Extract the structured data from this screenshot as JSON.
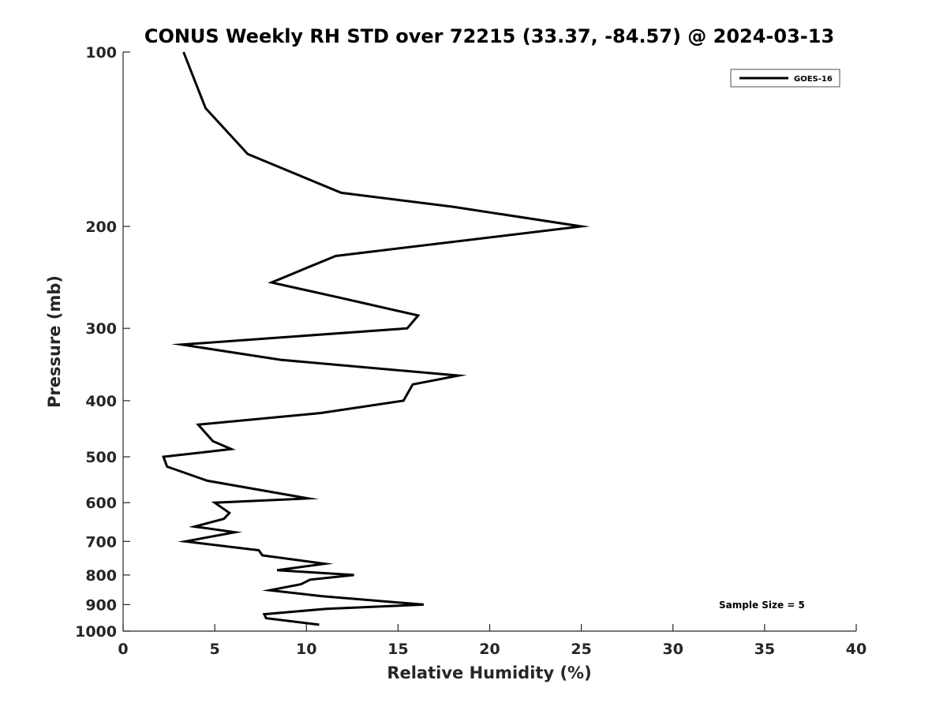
{
  "chart_data": {
    "type": "line",
    "title": "CONUS Weekly RH STD over 72215 (33.37, -84.57) @ 2024-03-13",
    "xlabel": "Relative Humidity (%)",
    "ylabel": "Pressure (mb)",
    "xlim": [
      0,
      40
    ],
    "ylim": [
      100,
      1000
    ],
    "y_scale": "log",
    "y_reversed": true,
    "xticks": [
      0,
      5,
      10,
      15,
      20,
      25,
      30,
      35,
      40
    ],
    "yticks": [
      100,
      200,
      300,
      400,
      500,
      600,
      700,
      800,
      900,
      1000
    ],
    "grid": false,
    "legend_position": "top-right",
    "series": [
      {
        "name": "GOES-16",
        "color": "#000000",
        "points": [
          [
            3.3,
            100
          ],
          [
            4.5,
            125
          ],
          [
            6.8,
            150
          ],
          [
            11.9,
            175
          ],
          [
            18.0,
            185
          ],
          [
            25.0,
            200
          ],
          [
            11.6,
            225
          ],
          [
            10.0,
            236
          ],
          [
            8.1,
            250
          ],
          [
            11.7,
            265
          ],
          [
            16.1,
            285
          ],
          [
            15.5,
            300
          ],
          [
            3.2,
            320
          ],
          [
            8.6,
            340
          ],
          [
            18.3,
            362
          ],
          [
            15.8,
            375
          ],
          [
            15.3,
            400
          ],
          [
            10.8,
            420
          ],
          [
            4.1,
            440
          ],
          [
            4.9,
            470
          ],
          [
            5.9,
            485
          ],
          [
            2.2,
            500
          ],
          [
            2.4,
            520
          ],
          [
            4.6,
            550
          ],
          [
            10.1,
            590
          ],
          [
            5.0,
            600
          ],
          [
            5.8,
            625
          ],
          [
            5.5,
            640
          ],
          [
            3.9,
            660
          ],
          [
            6.1,
            675
          ],
          [
            3.4,
            700
          ],
          [
            7.4,
            725
          ],
          [
            7.6,
            740
          ],
          [
            11.0,
            765
          ],
          [
            8.4,
            785
          ],
          [
            12.6,
            800
          ],
          [
            10.2,
            815
          ],
          [
            9.7,
            830
          ],
          [
            8.0,
            850
          ],
          [
            10.8,
            870
          ],
          [
            16.4,
            900
          ],
          [
            11.1,
            915
          ],
          [
            7.7,
            935
          ],
          [
            7.8,
            950
          ],
          [
            10.7,
            975
          ]
        ]
      }
    ],
    "annotations": [
      {
        "text": "Sample Size = 5"
      }
    ]
  }
}
